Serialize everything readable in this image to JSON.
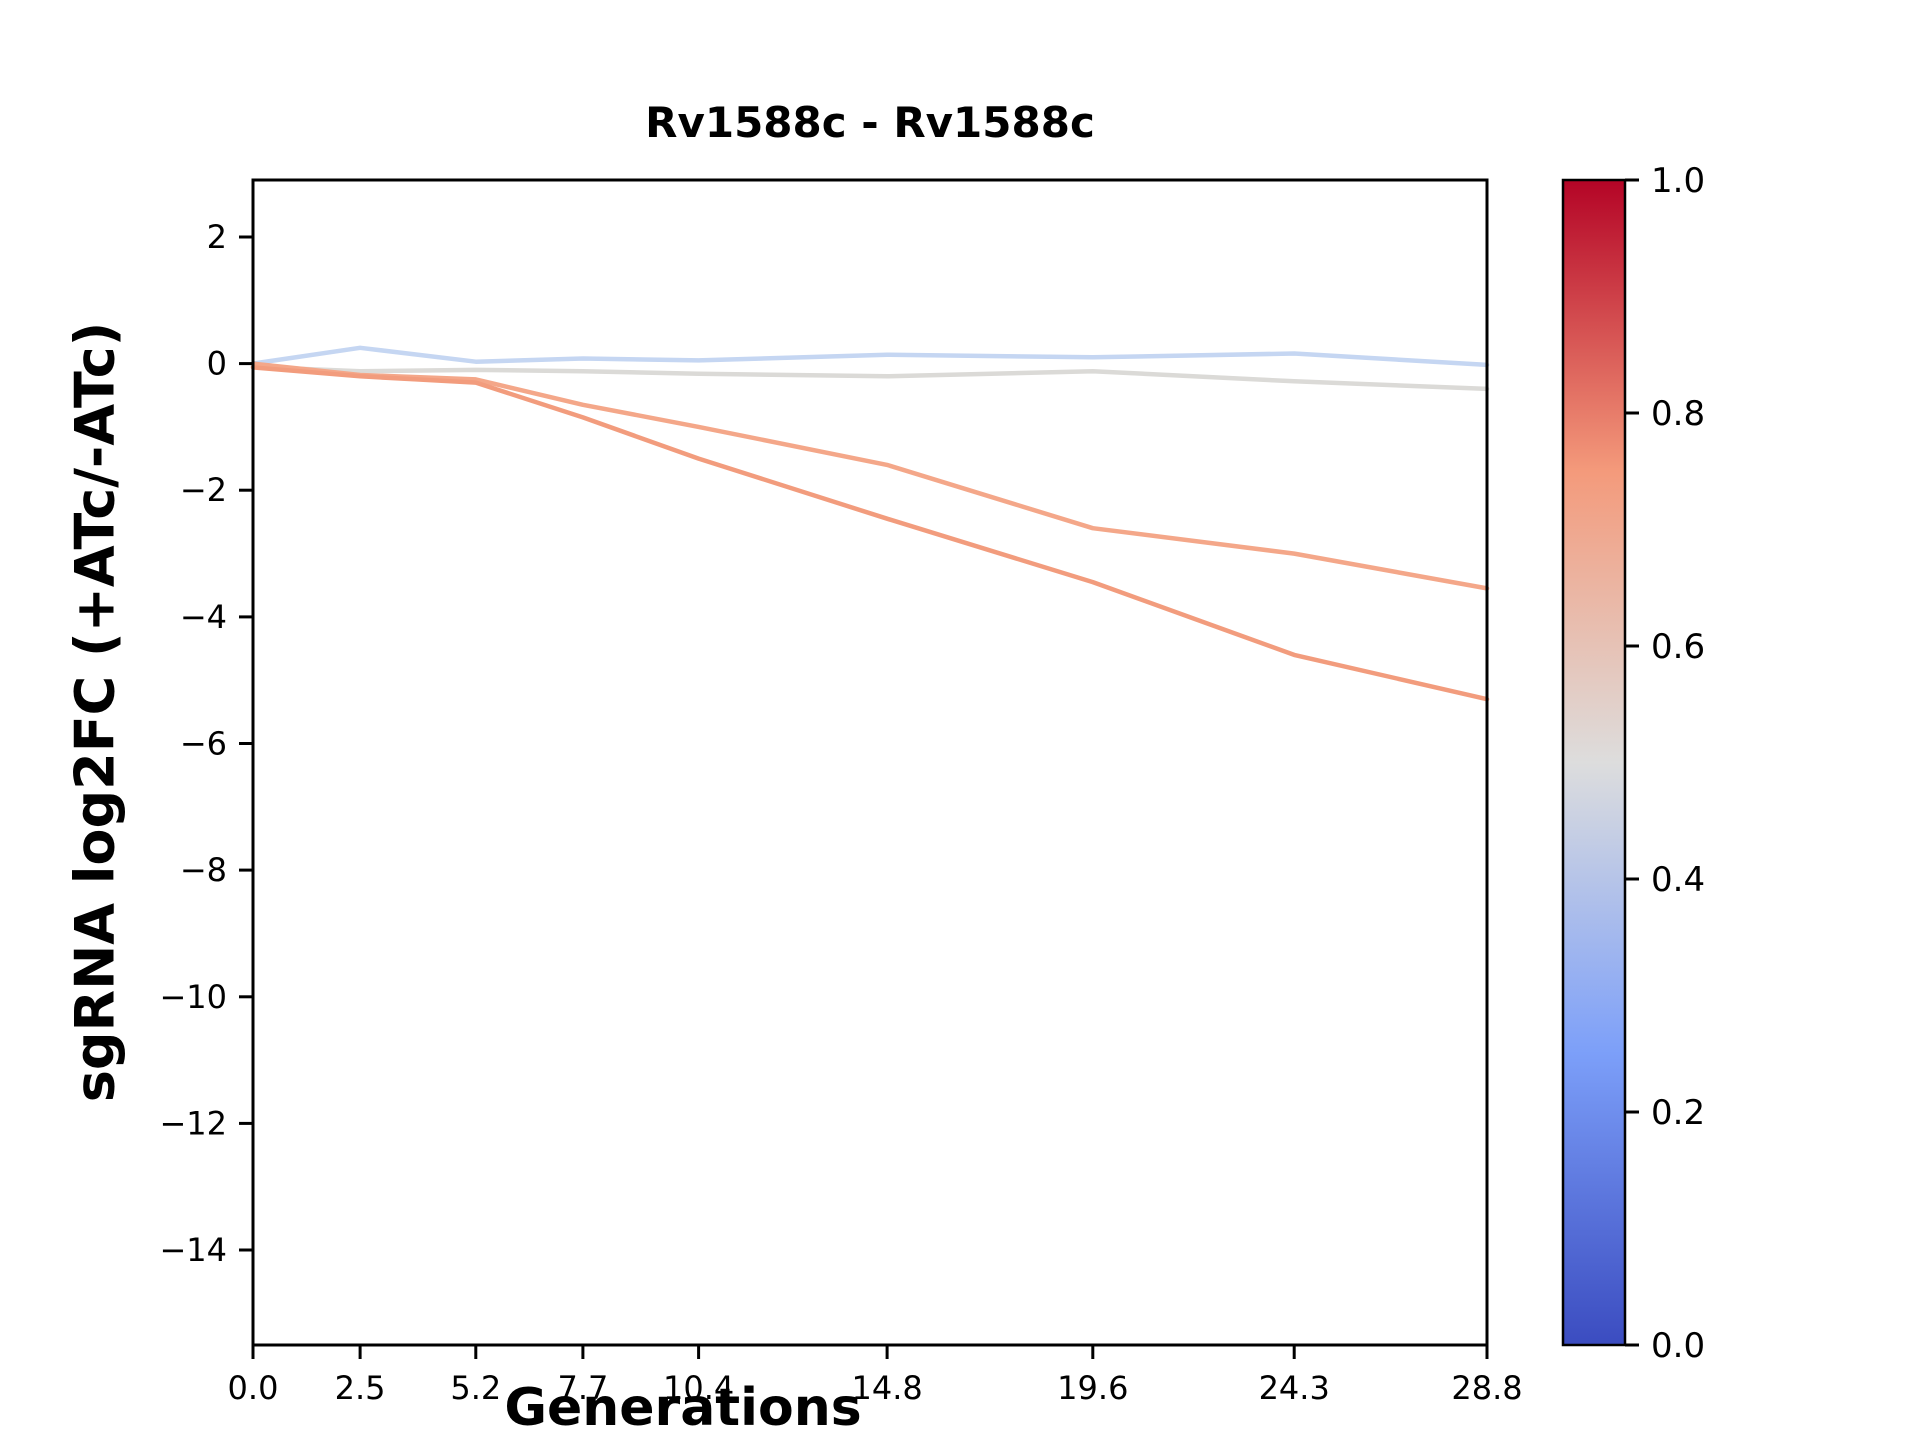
{
  "chart_data": {
    "type": "line",
    "title": "Rv1588c - Rv1588c",
    "xlabel": "Generations",
    "ylabel": "sgRNA log2FC (+ATc/-ATc)",
    "x": [
      0.0,
      2.5,
      5.2,
      7.7,
      10.4,
      14.8,
      19.6,
      24.3,
      28.8
    ],
    "x_tick_labels": [
      "0.0",
      "2.5",
      "5.2",
      "7.7",
      "10.4",
      "14.8",
      "19.6",
      "24.3",
      "28.8"
    ],
    "y_tick_values": [
      2,
      0,
      -2,
      -4,
      -6,
      -8,
      -10,
      -12,
      -14
    ],
    "y_tick_labels": [
      "2",
      "0",
      "−2",
      "−4",
      "−6",
      "−8",
      "−10",
      "−12",
      "−14"
    ],
    "xlim": [
      0,
      28.8
    ],
    "ylim": [
      -15.5,
      2.9
    ],
    "grid": false,
    "axis_color": "#000000",
    "series": [
      {
        "colormap_value": 0.42,
        "color": "#c5d6f2",
        "values": [
          0.0,
          0.25,
          0.03,
          0.08,
          0.05,
          0.14,
          0.1,
          0.16,
          -0.02
        ]
      },
      {
        "colormap_value": 0.5,
        "color": "#dbdad7",
        "values": [
          -0.05,
          -0.12,
          -0.1,
          -0.12,
          -0.16,
          -0.2,
          -0.12,
          -0.28,
          -0.4
        ]
      },
      {
        "colormap_value": 0.73,
        "color": "#f4a789",
        "values": [
          0.0,
          -0.18,
          -0.25,
          -0.65,
          -1.0,
          -1.6,
          -2.6,
          -3.0,
          -3.55
        ]
      },
      {
        "colormap_value": 0.76,
        "color": "#f29c7d",
        "values": [
          -0.06,
          -0.2,
          -0.3,
          -0.85,
          -1.5,
          -2.45,
          -3.45,
          -4.6,
          -5.3
        ]
      }
    ],
    "colorbar": {
      "range": [
        0.0,
        1.0
      ],
      "tick_values": [
        1.0,
        0.8,
        0.6,
        0.4,
        0.2,
        0.0
      ],
      "tick_labels": [
        "1.0",
        "0.8",
        "0.6",
        "0.4",
        "0.2",
        "0.0"
      ],
      "colormap": "coolwarm",
      "stops": [
        {
          "at": 0.0,
          "color": "#3b4cc0"
        },
        {
          "at": 0.25,
          "color": "#7c9ff9"
        },
        {
          "at": 0.5,
          "color": "#dddddd"
        },
        {
          "at": 0.75,
          "color": "#f49a7b"
        },
        {
          "at": 1.0,
          "color": "#b40426"
        }
      ]
    }
  }
}
